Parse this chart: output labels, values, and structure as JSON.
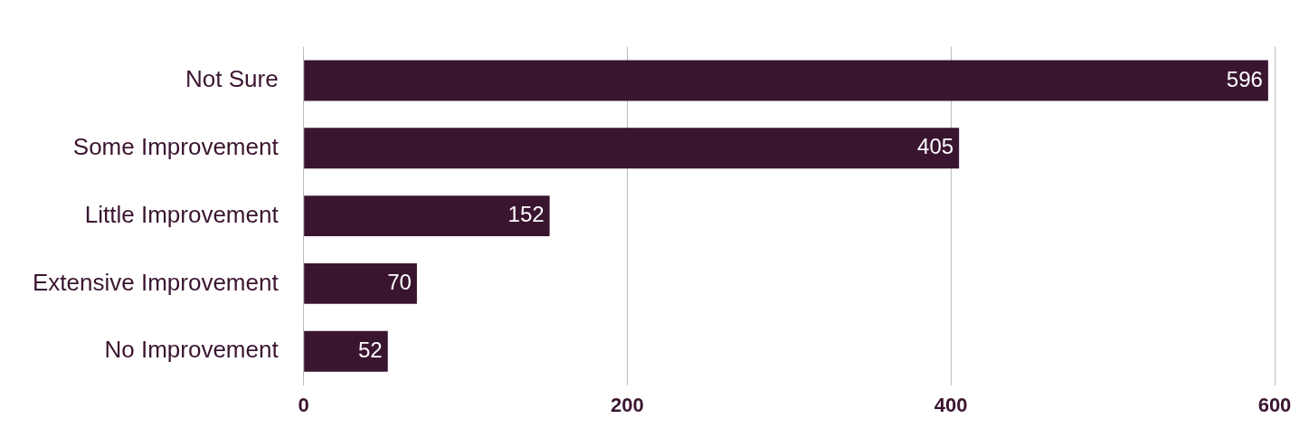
{
  "chart_data": {
    "type": "bar",
    "orientation": "horizontal",
    "categories": [
      "Not Sure",
      "Some Improvement",
      "Little Improvement",
      "Extensive Improvement",
      "No Improvement"
    ],
    "values": [
      596,
      405,
      152,
      70,
      52
    ],
    "color": "#3a1530",
    "xlim": [
      0,
      600
    ],
    "xticks": [
      0,
      200,
      400,
      600
    ],
    "grid": "x",
    "data_labels": true
  }
}
